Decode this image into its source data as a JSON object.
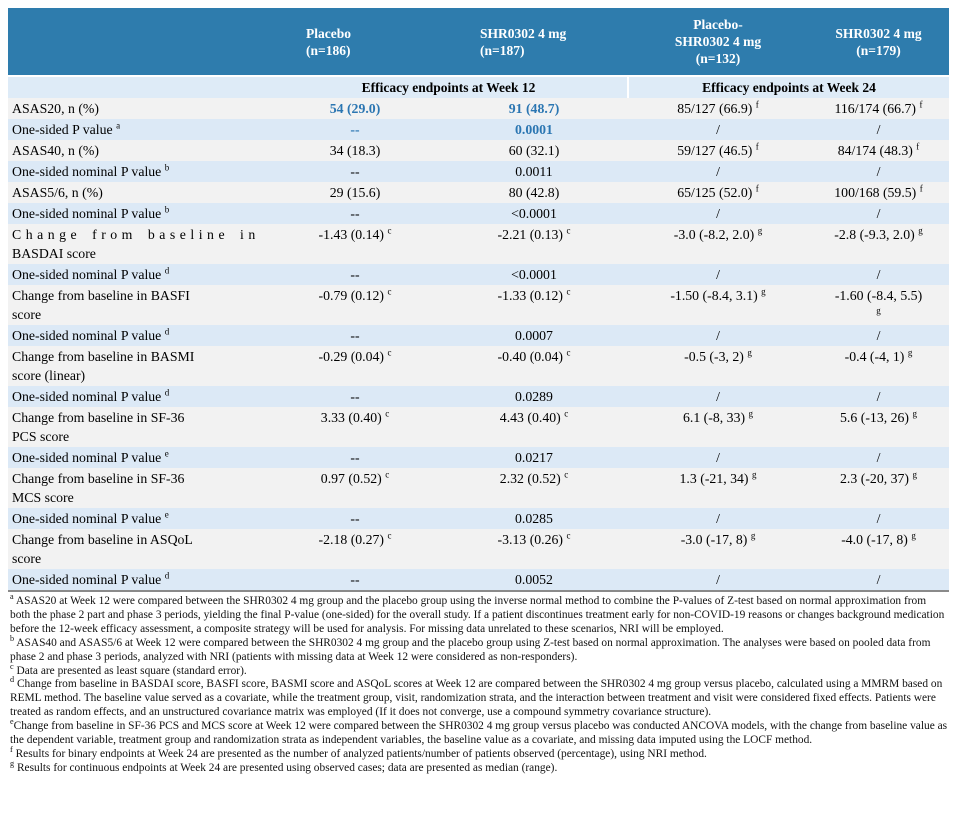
{
  "colors": {
    "header_bg": "#2e7cad",
    "stripe_gray": "#f2f2f2",
    "stripe_blue": "#dce9f6",
    "subheader_bg": "#deebf7",
    "accent_blue": "#2b76b2"
  },
  "table": {
    "header": {
      "columns": [
        {
          "label": ""
        },
        {
          "label": "Placebo\n(n=186)"
        },
        {
          "label": "SHR0302 4 mg\n(n=187)"
        },
        {
          "label": "Placebo-\nSHR0302 4 mg\n(n=132)"
        },
        {
          "label": "SHR0302 4 mg\n(n=179)"
        }
      ],
      "subheaders": [
        "Efficacy endpoints at Week 12",
        "Efficacy endpoints at Week 24"
      ]
    },
    "rows": [
      {
        "label": "ASAS20, n (%)",
        "sup": "",
        "cells": [
          {
            "t": "54 (29.0)",
            "blue": true
          },
          {
            "t": "91 (48.7)",
            "blue": true
          },
          {
            "t": "85/127 (66.9)",
            "sup": "f"
          },
          {
            "t": "116/174 (66.7)",
            "sup": "f"
          }
        ]
      },
      {
        "label": "One-sided P value",
        "sup": "a",
        "cells": [
          {
            "t": "--",
            "blue": true
          },
          {
            "t": "0.0001",
            "blue": true
          },
          {
            "t": "/"
          },
          {
            "t": "/"
          }
        ]
      },
      {
        "label": "ASAS40, n (%)",
        "sup": "",
        "cells": [
          {
            "t": "34 (18.3)"
          },
          {
            "t": "60 (32.1)"
          },
          {
            "t": "59/127 (46.5)",
            "sup": "f"
          },
          {
            "t": "84/174 (48.3)",
            "sup": "f"
          }
        ]
      },
      {
        "label": "One-sided nominal P value",
        "sup": "b",
        "cells": [
          {
            "t": "--"
          },
          {
            "t": "0.0011"
          },
          {
            "t": "/"
          },
          {
            "t": "/"
          }
        ]
      },
      {
        "label": "ASAS5/6, n (%)",
        "sup": "",
        "cells": [
          {
            "t": "29 (15.6)"
          },
          {
            "t": "80 (42.8)"
          },
          {
            "t": "65/125 (52.0)",
            "sup": "f"
          },
          {
            "t": "100/168 (59.5)",
            "sup": "f"
          }
        ]
      },
      {
        "label": "One-sided nominal P value",
        "sup": "b",
        "cells": [
          {
            "t": "--"
          },
          {
            "t": "<0.0001"
          },
          {
            "t": "/"
          },
          {
            "t": "/"
          }
        ]
      },
      {
        "label": "Change from baseline in\nBASDAI score",
        "sup": "",
        "stretch": true,
        "cells": [
          {
            "t": "-1.43 (0.14)",
            "sup": "c"
          },
          {
            "t": "-2.21 (0.13)",
            "sup": "c"
          },
          {
            "t": "-3.0 (-8.2, 2.0)",
            "sup": "g"
          },
          {
            "t": "-2.8 (-9.3, 2.0)",
            "sup": "g"
          }
        ]
      },
      {
        "label": "One-sided nominal P value",
        "sup": "d",
        "cells": [
          {
            "t": "--"
          },
          {
            "t": "<0.0001"
          },
          {
            "t": "/"
          },
          {
            "t": "/"
          }
        ]
      },
      {
        "label": "Change from baseline in BASFI\nscore",
        "sup": "",
        "cells": [
          {
            "t": "-0.79 (0.12)",
            "sup": "c"
          },
          {
            "t": "-1.33 (0.12)",
            "sup": "c"
          },
          {
            "t": "-1.50 (-8.4, 3.1)",
            "sup": "g"
          },
          {
            "t": "-1.60 (-8.4, 5.5)",
            "sup": "g",
            "supbreak": true
          }
        ]
      },
      {
        "label": "One-sided nominal P value",
        "sup": "d",
        "cells": [
          {
            "t": "--"
          },
          {
            "t": "0.0007"
          },
          {
            "t": "/"
          },
          {
            "t": "/"
          }
        ]
      },
      {
        "label": "Change from baseline in BASMI\nscore (linear)",
        "sup": "",
        "cells": [
          {
            "t": "-0.29 (0.04)",
            "sup": "c"
          },
          {
            "t": "-0.40 (0.04)",
            "sup": "c"
          },
          {
            "t": "-0.5 (-3, 2)",
            "sup": "g"
          },
          {
            "t": "-0.4 (-4, 1)",
            "sup": "g"
          }
        ]
      },
      {
        "label": "One-sided nominal P value",
        "sup": "d",
        "cells": [
          {
            "t": "--"
          },
          {
            "t": "0.0289"
          },
          {
            "t": "/"
          },
          {
            "t": "/"
          }
        ]
      },
      {
        "label": "Change from baseline in SF-36\nPCS score",
        "sup": "",
        "cells": [
          {
            "t": "3.33 (0.40)",
            "sup": "c"
          },
          {
            "t": "4.43 (0.40)",
            "sup": "c"
          },
          {
            "t": "6.1 (-8, 33)",
            "sup": "g"
          },
          {
            "t": "5.6 (-13, 26)",
            "sup": "g"
          }
        ]
      },
      {
        "label": "One-sided nominal P value",
        "sup": "e",
        "cells": [
          {
            "t": "--"
          },
          {
            "t": "0.0217"
          },
          {
            "t": "/"
          },
          {
            "t": "/"
          }
        ]
      },
      {
        "label": "Change from baseline in SF-36\nMCS score",
        "sup": "",
        "cells": [
          {
            "t": "0.97 (0.52)",
            "sup": "c"
          },
          {
            "t": "2.32 (0.52)",
            "sup": "c"
          },
          {
            "t": "1.3 (-21, 34)",
            "sup": "g"
          },
          {
            "t": "2.3 (-20, 37)",
            "sup": "g"
          }
        ]
      },
      {
        "label": "One-sided nominal P value",
        "sup": "e",
        "cells": [
          {
            "t": "--"
          },
          {
            "t": "0.0285"
          },
          {
            "t": "/"
          },
          {
            "t": "/"
          }
        ]
      },
      {
        "label": "Change from baseline in ASQoL\nscore",
        "sup": "",
        "cells": [
          {
            "t": "-2.18 (0.27)",
            "sup": "c"
          },
          {
            "t": "-3.13 (0.26)",
            "sup": "c"
          },
          {
            "t": "-3.0 (-17, 8)",
            "sup": "g"
          },
          {
            "t": "-4.0 (-17, 8)",
            "sup": "g"
          }
        ]
      },
      {
        "label": "One-sided nominal P value",
        "sup": "d",
        "cells": [
          {
            "t": "--"
          },
          {
            "t": "0.0052"
          },
          {
            "t": "/"
          },
          {
            "t": "/"
          }
        ]
      }
    ]
  },
  "footnotes": [
    {
      "marker": "a",
      "text": "ASAS20 at Week 12 were compared between the SHR0302 4 mg group and the placebo group using the inverse normal method to combine the P-values of Z-test based on normal approximation from both the phase 2 part and phase 3 periods, yielding the final P-value (one-sided) for the overall study. If a patient discontinues treatment early for non-COVID-19 reasons or changes background medication before the 12-week efficacy assessment, a composite strategy will be used for analysis. For missing data unrelated to these scenarios, NRI will be employed."
    },
    {
      "marker": "b",
      "text": "ASAS40 and ASAS5/6 at Week 12 were compared between the SHR0302 4 mg group and the placebo group using Z-test based on normal approximation. The analyses were based on pooled data from phase 2 and phase 3 periods, analyzed with NRI (patients with missing data at Week 12 were considered as non-responders)."
    },
    {
      "marker": "c",
      "text": "Data are presented as least square (standard error)."
    },
    {
      "marker": "d",
      "text": "Change from baseline in BASDAI score, BASFI score, BASMI score and ASQoL scores at Week 12 are compared between the SHR0302 4 mg group versus placebo, calculated using a MMRM based on REML method. The baseline value served as a covariate, while the treatment group, visit, randomization strata, and the interaction between treatment and visit were considered fixed effects. Patients were treated as random effects, and an unstructured covariance matrix was employed (If it does not converge, use a compound symmetry covariance structure)."
    },
    {
      "marker": "e",
      "nospace": true,
      "text": "Change from baseline in SF-36 PCS and MCS score at Week 12 were compared between the SHR0302 4 mg group versus placebo was conducted ANCOVA models, with the change from baseline value as the dependent variable, treatment group and randomization strata as independent variables, the baseline value as a covariate, and missing data imputed using the LOCF method."
    },
    {
      "marker": "f",
      "text": "Results for binary endpoints at Week 24 are presented as the number of analyzed patients/number of patients observed (percentage), using NRI method."
    },
    {
      "marker": "g",
      "text": "Results for continuous endpoints at Week 24 are presented using observed cases; data are presented as median (range)."
    }
  ]
}
